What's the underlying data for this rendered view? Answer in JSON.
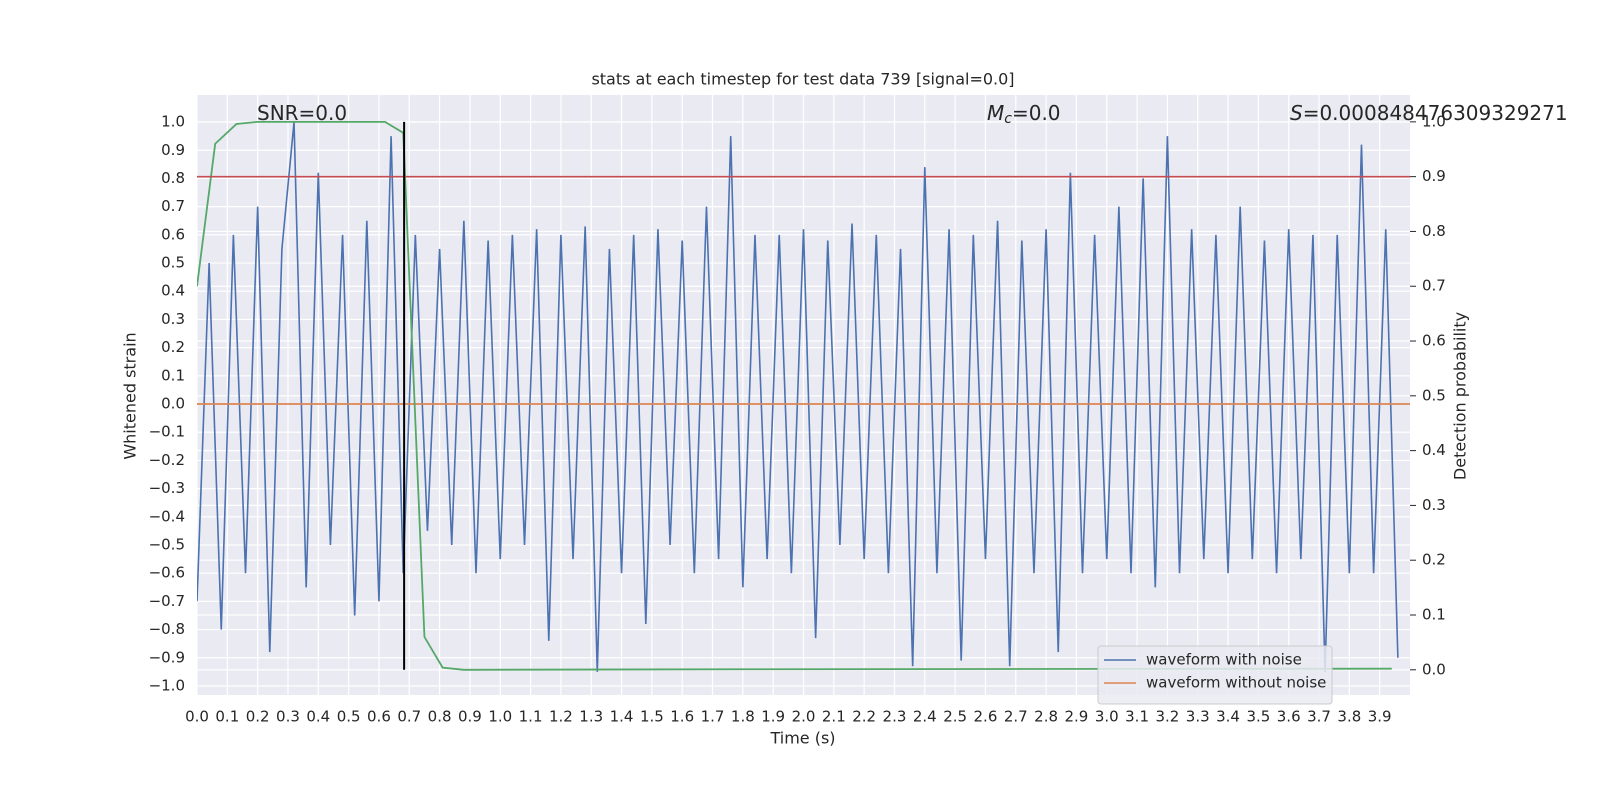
{
  "chart_data": {
    "type": "line",
    "title": "stats at each timestep for test data 739 [signal=0.0]",
    "xlabel": "Time (s)",
    "ylabel": "Whitened strain",
    "y2label": "Detection probability",
    "annotations": [
      {
        "text": "SNR=0.0"
      },
      {
        "symbol": "M",
        "subscript": "c",
        "text": "=0.0"
      },
      {
        "symbol": "S",
        "text": "=0.000848476309329271"
      }
    ],
    "xlim": [
      0,
      4.0
    ],
    "ylim": [
      -1.032,
      1.096
    ],
    "y2lim": [
      -0.046,
      1.049
    ],
    "grid": true,
    "legend": "lower right",
    "xticks": [
      {
        "value": 0,
        "label": "0.0"
      },
      {
        "value": 0.1,
        "label": "0.1"
      },
      {
        "value": 0.2,
        "label": "0.2"
      },
      {
        "value": 0.3,
        "label": "0.3"
      },
      {
        "value": 0.4,
        "label": "0.4"
      },
      {
        "value": 0.5,
        "label": "0.5"
      },
      {
        "value": 0.6,
        "label": "0.6"
      },
      {
        "value": 0.7,
        "label": "0.7"
      },
      {
        "value": 0.8,
        "label": "0.8"
      },
      {
        "value": 0.9,
        "label": "0.9"
      },
      {
        "value": 1,
        "label": "1.0"
      },
      {
        "value": 1.1,
        "label": "1.1"
      },
      {
        "value": 1.2,
        "label": "1.2"
      },
      {
        "value": 1.3,
        "label": "1.3"
      },
      {
        "value": 1.4,
        "label": "1.4"
      },
      {
        "value": 1.5,
        "label": "1.5"
      },
      {
        "value": 1.6,
        "label": "1.6"
      },
      {
        "value": 1.7,
        "label": "1.7"
      },
      {
        "value": 1.8,
        "label": "1.8"
      },
      {
        "value": 1.9,
        "label": "1.9"
      },
      {
        "value": 2,
        "label": "2.0"
      },
      {
        "value": 2.1,
        "label": "2.1"
      },
      {
        "value": 2.2,
        "label": "2.2"
      },
      {
        "value": 2.3,
        "label": "2.3"
      },
      {
        "value": 2.4,
        "label": "2.4"
      },
      {
        "value": 2.5,
        "label": "2.5"
      },
      {
        "value": 2.6,
        "label": "2.6"
      },
      {
        "value": 2.7,
        "label": "2.7"
      },
      {
        "value": 2.8,
        "label": "2.8"
      },
      {
        "value": 2.9,
        "label": "2.9"
      },
      {
        "value": 3,
        "label": "3.0"
      },
      {
        "value": 3.1,
        "label": "3.1"
      },
      {
        "value": 3.2,
        "label": "3.2"
      },
      {
        "value": 3.3,
        "label": "3.3"
      },
      {
        "value": 3.4,
        "label": "3.4"
      },
      {
        "value": 3.5,
        "label": "3.5"
      },
      {
        "value": 3.6,
        "label": "3.6"
      },
      {
        "value": 3.7,
        "label": "3.7"
      },
      {
        "value": 3.8,
        "label": "3.8"
      },
      {
        "value": 3.9,
        "label": "3.9"
      }
    ],
    "yticks": [
      {
        "value": -1,
        "label": "−1.0"
      },
      {
        "value": -0.9,
        "label": "−0.9"
      },
      {
        "value": -0.8,
        "label": "−0.8"
      },
      {
        "value": -0.7,
        "label": "−0.7"
      },
      {
        "value": -0.6,
        "label": "−0.6"
      },
      {
        "value": -0.5,
        "label": "−0.5"
      },
      {
        "value": -0.4,
        "label": "−0.4"
      },
      {
        "value": -0.3,
        "label": "−0.3"
      },
      {
        "value": -0.2,
        "label": "−0.2"
      },
      {
        "value": -0.1,
        "label": "−0.1"
      },
      {
        "value": 0,
        "label": "0.0"
      },
      {
        "value": 0.1,
        "label": "0.1"
      },
      {
        "value": 0.2,
        "label": "0.2"
      },
      {
        "value": 0.3,
        "label": "0.3"
      },
      {
        "value": 0.4,
        "label": "0.4"
      },
      {
        "value": 0.5,
        "label": "0.5"
      },
      {
        "value": 0.6,
        "label": "0.6"
      },
      {
        "value": 0.7,
        "label": "0.7"
      },
      {
        "value": 0.8,
        "label": "0.8"
      },
      {
        "value": 0.9,
        "label": "0.9"
      },
      {
        "value": 1,
        "label": "1.0"
      }
    ],
    "y2ticks": [
      {
        "value": 0,
        "label": "0.0"
      },
      {
        "value": 0.1,
        "label": "0.1"
      },
      {
        "value": 0.2,
        "label": "0.2"
      },
      {
        "value": 0.3,
        "label": "0.3"
      },
      {
        "value": 0.4,
        "label": "0.4"
      },
      {
        "value": 0.5,
        "label": "0.5"
      },
      {
        "value": 0.6,
        "label": "0.6"
      },
      {
        "value": 0.7,
        "label": "0.7"
      },
      {
        "value": 0.8,
        "label": "0.8"
      },
      {
        "value": 0.9,
        "label": "0.9"
      },
      {
        "value": 1,
        "label": "1.0"
      }
    ],
    "series": [
      {
        "name": "waveform with noise",
        "color": "#4c72b0",
        "x": [
          0,
          0.04,
          0.08,
          0.12,
          0.16,
          0.2,
          0.24,
          0.28,
          0.32,
          0.36,
          0.4,
          0.44,
          0.48,
          0.52,
          0.56,
          0.6,
          0.64,
          0.68,
          0.72,
          0.76,
          0.8,
          0.84,
          0.88,
          0.92,
          0.96,
          1,
          1.04,
          1.08,
          1.12,
          1.16,
          1.2,
          1.24,
          1.28,
          1.32,
          1.36,
          1.4,
          1.44,
          1.48,
          1.52,
          1.56,
          1.6,
          1.64,
          1.68,
          1.72,
          1.76,
          1.8,
          1.84,
          1.88,
          1.92,
          1.96,
          2,
          2.04,
          2.08,
          2.12,
          2.16,
          2.2,
          2.24,
          2.28,
          2.32,
          2.36,
          2.4,
          2.44,
          2.48,
          2.52,
          2.56,
          2.6,
          2.64,
          2.68,
          2.72,
          2.76,
          2.8,
          2.84,
          2.88,
          2.92,
          2.96,
          3,
          3.04,
          3.08,
          3.12,
          3.16,
          3.2,
          3.24,
          3.28,
          3.32,
          3.36,
          3.4,
          3.44,
          3.48,
          3.52,
          3.56,
          3.6,
          3.64,
          3.68,
          3.72,
          3.76,
          3.8,
          3.84,
          3.88,
          3.92,
          3.96
        ],
        "values": [
          -0.7,
          0.5,
          -0.8,
          0.6,
          -0.6,
          0.7,
          -0.88,
          0.55,
          1.0,
          -0.65,
          0.82,
          -0.5,
          0.6,
          -0.75,
          0.65,
          -0.7,
          0.95,
          -0.6,
          0.6,
          -0.45,
          0.55,
          -0.5,
          0.65,
          -0.6,
          0.58,
          -0.55,
          0.6,
          -0.5,
          0.62,
          -0.84,
          0.6,
          -0.55,
          0.63,
          -0.95,
          0.55,
          -0.6,
          0.6,
          -0.78,
          0.62,
          -0.5,
          0.58,
          -0.6,
          0.7,
          -0.55,
          0.95,
          -0.65,
          0.6,
          -0.55,
          0.6,
          -0.6,
          0.62,
          -0.83,
          0.58,
          -0.5,
          0.64,
          -0.55,
          0.6,
          -0.6,
          0.55,
          -0.93,
          0.84,
          -0.6,
          0.62,
          -0.91,
          0.6,
          -0.55,
          0.65,
          -0.93,
          0.58,
          -0.6,
          0.62,
          -0.88,
          0.82,
          -0.6,
          0.6,
          -0.55,
          0.7,
          -0.6,
          0.8,
          -0.65,
          0.95,
          -0.6,
          0.62,
          -0.55,
          0.6,
          -0.6,
          0.7,
          -0.55,
          0.58,
          -0.6,
          0.62,
          -0.55,
          0.6,
          -0.95,
          0.6,
          -0.6,
          0.92,
          -0.6,
          0.62,
          -0.9
        ]
      },
      {
        "name": "waveform without noise",
        "color": "#dd8452",
        "x": [
          0,
          4.0
        ],
        "values": [
          0,
          0
        ]
      },
      {
        "color": "#55a868",
        "axis": "y2",
        "x": [
          0,
          0.06,
          0.13,
          0.2,
          0.62,
          0.68,
          0.75,
          0.81,
          0.88,
          1.8,
          3.94
        ],
        "values": [
          0.7,
          0.96,
          0.996,
          1.0,
          1.0,
          0.98,
          0.06,
          0.004,
          0,
          0.001,
          0.002
        ]
      }
    ],
    "hline": {
      "y": 0.9,
      "axis": "y2",
      "color": "#c44e52"
    },
    "vline": {
      "x": 0.683,
      "ymin": 0,
      "ymax": 1,
      "axis": "y2",
      "color": "#000000"
    }
  }
}
